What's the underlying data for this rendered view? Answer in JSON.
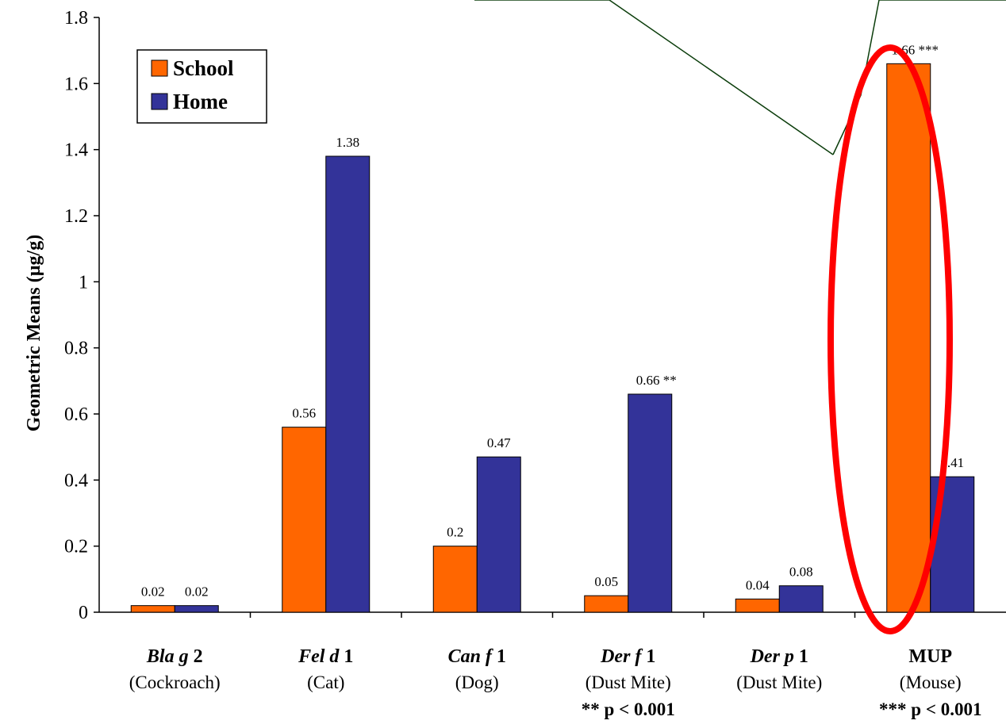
{
  "chart_data": {
    "type": "bar",
    "title": "",
    "ylabel": "Geometric Means (µg/g)",
    "ylim": [
      0,
      1.8
    ],
    "yticks": [
      "0",
      "0.2",
      "0.4",
      "0.6",
      "0.8",
      "1",
      "1.2",
      "1.4",
      "1.6",
      "1.8"
    ],
    "legend_position": "top-left",
    "categories": [
      {
        "parts": [
          {
            "t": "Bla g",
            "i": true
          },
          {
            "t": " 2",
            "i": false
          }
        ],
        "sub": "(Cockroach)",
        "note": ""
      },
      {
        "parts": [
          {
            "t": "Fel d",
            "i": true
          },
          {
            "t": " 1",
            "i": false
          }
        ],
        "sub": "(Cat)",
        "note": ""
      },
      {
        "parts": [
          {
            "t": "Can f",
            "i": true
          },
          {
            "t": " 1",
            "i": false
          }
        ],
        "sub": "(Dog)",
        "note": ""
      },
      {
        "parts": [
          {
            "t": "Der f",
            "i": true
          },
          {
            "t": " 1",
            "i": false
          }
        ],
        "sub": "(Dust Mite)",
        "note": "** p < 0.001"
      },
      {
        "parts": [
          {
            "t": "Der p",
            "i": true
          },
          {
            "t": " 1",
            "i": false
          }
        ],
        "sub": "(Dust Mite)",
        "note": ""
      },
      {
        "parts": [
          {
            "t": "MUP",
            "i": false
          }
        ],
        "sub": "(Mouse)",
        "note": "*** p < 0.001"
      }
    ],
    "series": [
      {
        "name": "School",
        "color": "#ff6600",
        "values": [
          0.02,
          0.56,
          0.2,
          0.05,
          0.04,
          1.66
        ],
        "labels": [
          "0.02",
          "0.56",
          "0.2",
          "0.05",
          "0.04",
          "1.66 ***"
        ]
      },
      {
        "name": "Home",
        "color": "#333399",
        "values": [
          0.02,
          1.38,
          0.47,
          0.66,
          0.08,
          0.41
        ],
        "labels": [
          "0.02",
          "1.38",
          "0.47",
          "0.66 **",
          "0.08",
          "0.41"
        ]
      }
    ],
    "annotations": {
      "highlight_color": "#ff0000",
      "callout_color": "#0b3d0b",
      "highlighted_category": "MUP"
    }
  }
}
